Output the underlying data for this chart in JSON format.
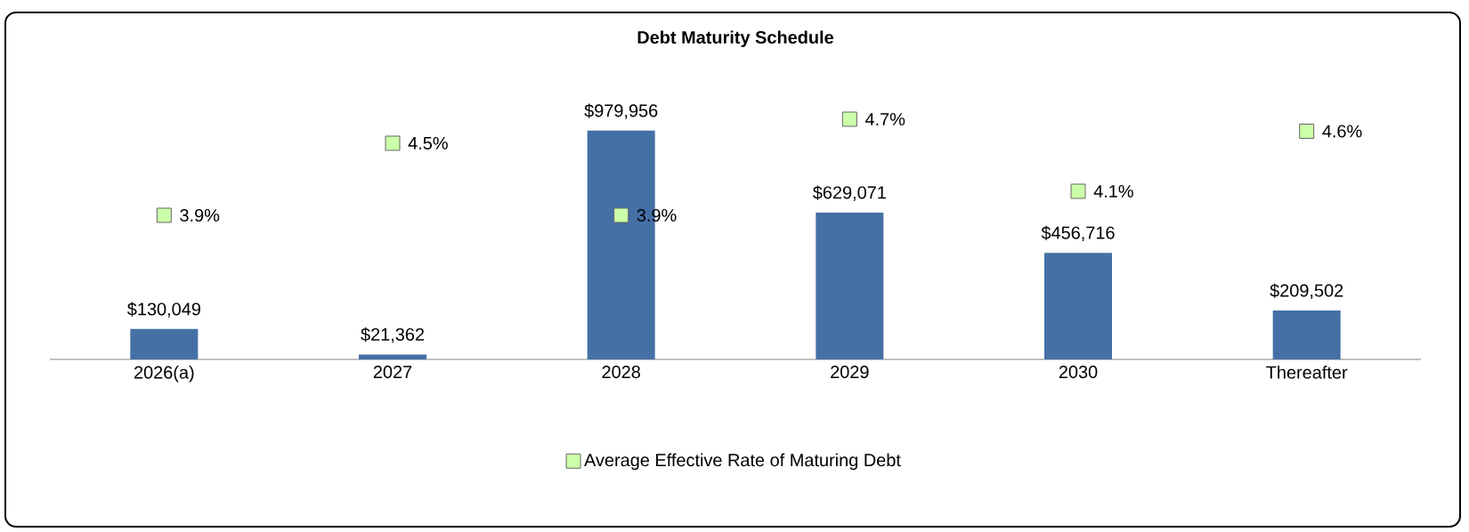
{
  "chart_data": {
    "type": "bar",
    "title": "Debt Maturity Schedule",
    "categories": [
      "2026(a)",
      "2027",
      "2028",
      "2029",
      "2030",
      "Thereafter"
    ],
    "tick_labels": "x",
    "legend": "bottom",
    "marker": "square",
    "series": [
      {
        "color": "#4470a6",
        "values": [
          130049,
          21362,
          979956,
          629071,
          456716,
          209502
        ],
        "value_labels": [
          "$130,049",
          "$21,362",
          "$979,956",
          "$629,071",
          "$456,716",
          "$209,502"
        ]
      },
      {
        "type": "scatter",
        "axis": "y2",
        "name": "Average Effective Rate of Maturing Debt",
        "color": "#ccffaa",
        "values": [
          3.9,
          4.5,
          3.9,
          4.7,
          4.1,
          4.6
        ],
        "value_labels": [
          "3.9%",
          "4.5%",
          "3.9%",
          "4.7%",
          "4.1%",
          "4.6%"
        ]
      }
    ]
  }
}
